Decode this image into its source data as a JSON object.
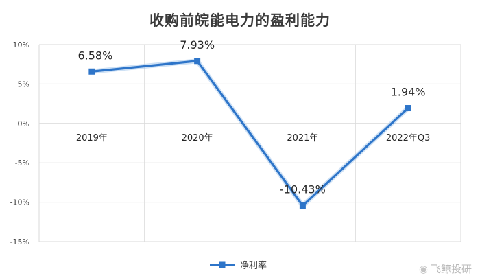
{
  "chart_data": {
    "type": "line",
    "title": "收购前皖能电力的盈利能力",
    "categories": [
      "2019年",
      "2020年",
      "2021年",
      "2022年Q3"
    ],
    "series": [
      {
        "name": "净利率",
        "values": [
          6.58,
          7.93,
          -10.43,
          1.94
        ],
        "labels": [
          "6.58%",
          "7.93%",
          "-10.43%",
          "1.94%"
        ]
      }
    ],
    "ylim": [
      -15,
      10
    ],
    "yticks": [
      {
        "value": 10,
        "label": "10%"
      },
      {
        "value": 5,
        "label": "5%"
      },
      {
        "value": 0,
        "label": "0%"
      },
      {
        "value": -5,
        "label": "-5%"
      },
      {
        "value": -10,
        "label": "-10%"
      },
      {
        "value": -15,
        "label": "-15%"
      }
    ],
    "grid": true,
    "legend": "bottom-center",
    "line_color": "#2e75c9"
  },
  "watermark": {
    "text": "飞鲸投研",
    "icon": "weibo-icon"
  }
}
